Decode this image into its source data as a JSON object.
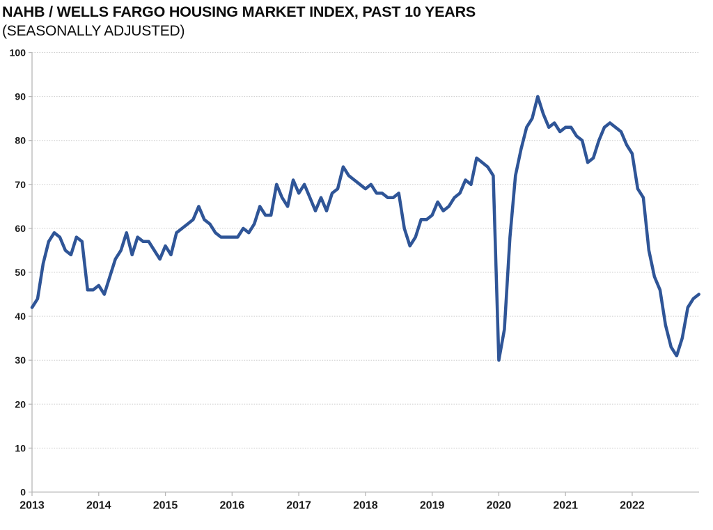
{
  "chart_data": {
    "type": "line",
    "title": "NAHB / WELLS FARGO HOUSING MARKET INDEX, PAST 10 YEARS",
    "subtitle": "(SEASONALLY ADJUSTED)",
    "x_unit": "month",
    "x_range": "2013-04 to 2023-04",
    "x_tick_labels": [
      "2013",
      "2014",
      "2015",
      "2016",
      "2017",
      "2018",
      "2019",
      "2020",
      "2021",
      "2022"
    ],
    "x_tick_every_months": 12,
    "y_ticks": [
      0,
      10,
      20,
      30,
      40,
      50,
      60,
      70,
      80,
      90,
      100
    ],
    "ylim": [
      0,
      100
    ],
    "grid": "horizontal-dotted",
    "legend": "none",
    "series": [
      {
        "name": "Housing Market Index (seasonally adjusted)",
        "values": [
          42,
          44,
          52,
          57,
          59,
          58,
          55,
          54,
          58,
          57,
          46,
          46,
          47,
          45,
          49,
          53,
          55,
          59,
          54,
          58,
          57,
          57,
          55,
          53,
          56,
          54,
          59,
          60,
          61,
          62,
          65,
          62,
          61,
          59,
          58,
          58,
          58,
          58,
          60,
          59,
          61,
          65,
          63,
          63,
          70,
          67,
          65,
          71,
          68,
          70,
          67,
          64,
          67,
          64,
          68,
          69,
          74,
          72,
          71,
          70,
          69,
          70,
          68,
          68,
          67,
          67,
          68,
          60,
          56,
          58,
          62,
          62,
          63,
          66,
          64,
          65,
          67,
          68,
          71,
          70,
          76,
          75,
          74,
          72,
          30,
          37,
          58,
          72,
          78,
          83,
          85,
          90,
          86,
          83,
          84,
          82,
          83,
          83,
          81,
          80,
          75,
          76,
          80,
          83,
          84,
          83,
          82,
          79,
          77,
          69,
          67,
          55,
          49,
          46,
          38,
          33,
          31,
          35,
          42,
          44,
          45
        ]
      }
    ],
    "colors": {
      "line": "#2F5597",
      "gridline": "#CDCDCD",
      "axis": "#B7B7B7",
      "text": "#1A1A1A",
      "background": "#FFFFFF"
    }
  }
}
